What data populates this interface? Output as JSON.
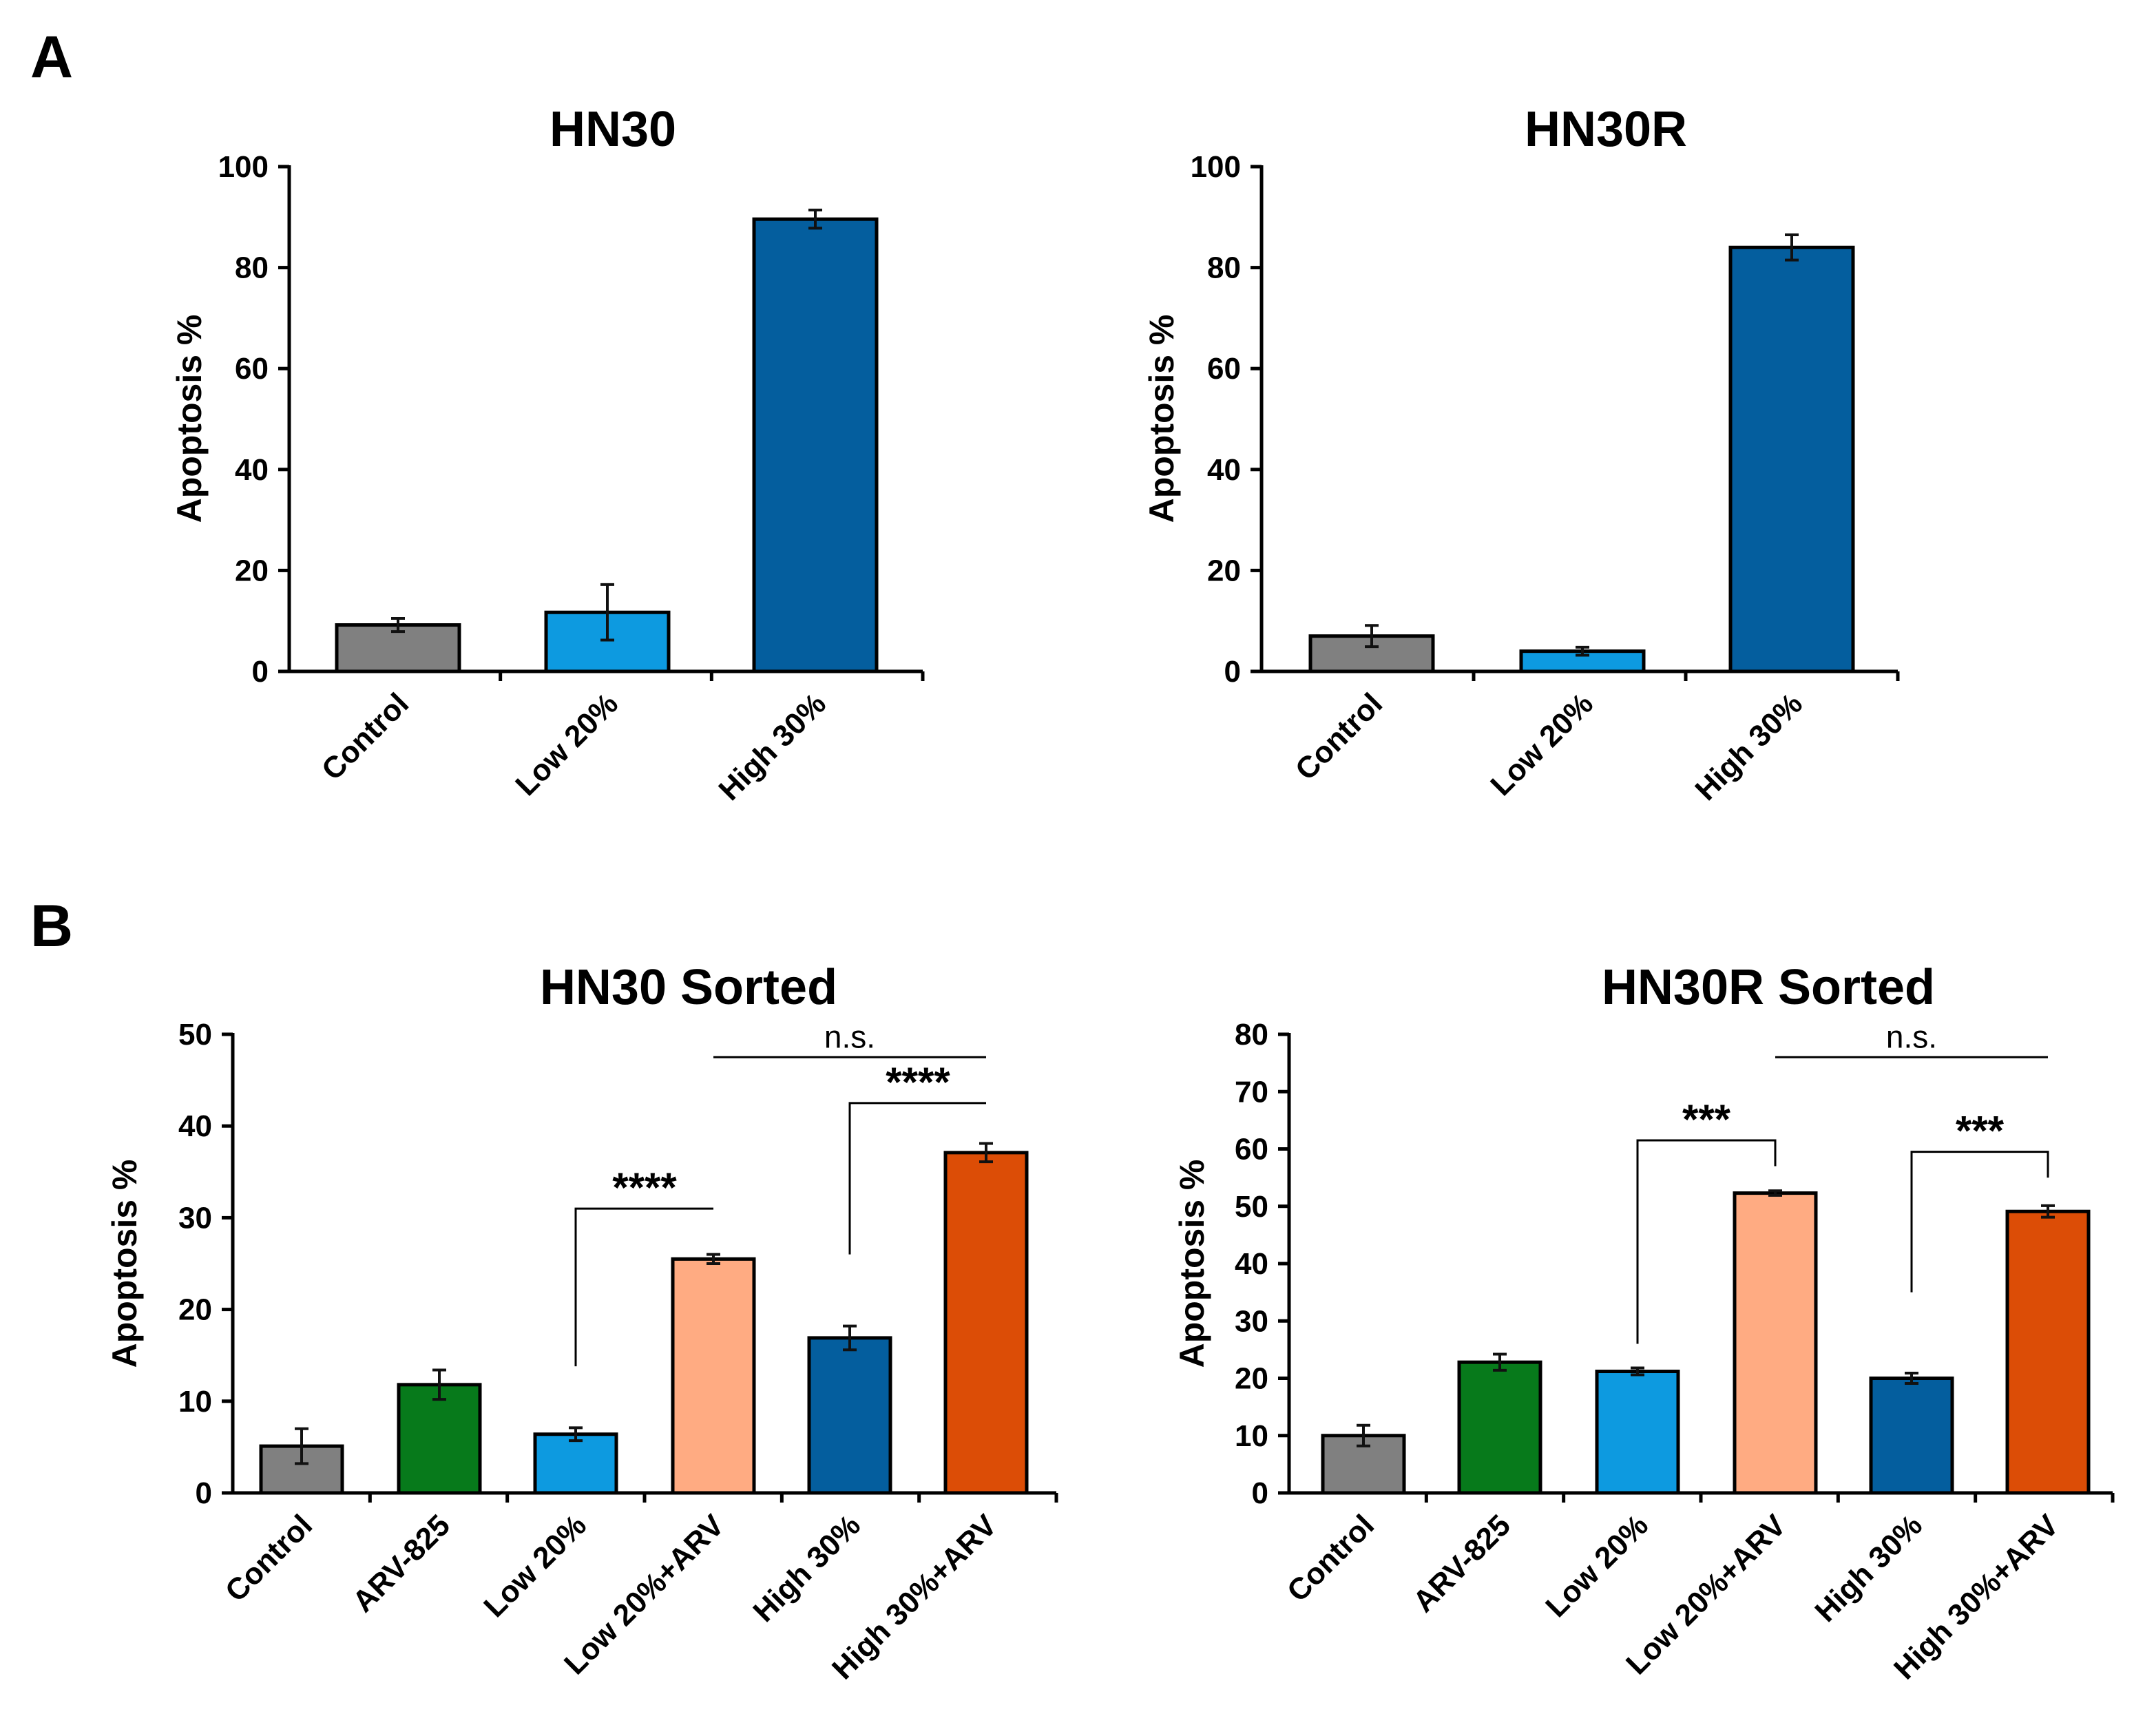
{
  "panels": [
    {
      "letter": "A"
    },
    {
      "letter": "B"
    }
  ],
  "colors": {
    "control": "#808080",
    "arv825": "#077a1b",
    "low": "#0d9ae0",
    "low_arv": "#ffab82",
    "high": "#045e9e",
    "high_arv": "#dc4d06",
    "axis": "#000000"
  },
  "chart_data": [
    {
      "type": "bar",
      "title": "HN30",
      "ylabel": "Apoptosis %",
      "xlabel": "",
      "ylim": [
        0,
        100
      ],
      "yticks": [
        0,
        20,
        40,
        60,
        80,
        100
      ],
      "categories": [
        "Control",
        "Low 20%",
        "High 30%"
      ],
      "series": [
        {
          "name": "Apoptosis %",
          "values": [
            9.2,
            11.7,
            89.6
          ],
          "errors": [
            1.3,
            5.5,
            1.8
          ]
        }
      ],
      "bar_colors": [
        "control",
        "low",
        "high"
      ],
      "significance": []
    },
    {
      "type": "bar",
      "title": "HN30R",
      "ylabel": "Apoptosis %",
      "xlabel": "",
      "ylim": [
        0,
        100
      ],
      "yticks": [
        0,
        20,
        40,
        60,
        80,
        100
      ],
      "categories": [
        "Control",
        "Low 20%",
        "High 30%"
      ],
      "series": [
        {
          "name": "Apoptosis %",
          "values": [
            7.0,
            4.0,
            84.0
          ],
          "errors": [
            2.1,
            0.8,
            2.5
          ]
        }
      ],
      "bar_colors": [
        "control",
        "low",
        "high"
      ],
      "significance": []
    },
    {
      "type": "bar",
      "title": "HN30 Sorted",
      "ylabel": "Apoptosis %",
      "xlabel": "",
      "ylim": [
        0,
        50
      ],
      "yticks": [
        0,
        10,
        20,
        30,
        40,
        50
      ],
      "categories": [
        "Control",
        "ARV-825",
        "Low 20%",
        "Low 20%+ARV",
        "High 30%",
        "High 30%+ARV"
      ],
      "series": [
        {
          "name": "Apoptosis %",
          "values": [
            5.1,
            11.8,
            6.4,
            25.5,
            16.9,
            37.1
          ],
          "errors": [
            1.9,
            1.6,
            0.7,
            0.5,
            1.3,
            1.0
          ]
        }
      ],
      "bar_colors": [
        "control",
        "arv825",
        "low",
        "low_arv",
        "high",
        "high_arv"
      ],
      "significance": [
        {
          "from": 2,
          "to": 3,
          "label": "****",
          "left_drop": 13.8,
          "right_drop": 31.0,
          "bracket_y": 31.0
        },
        {
          "from": 4,
          "to": 5,
          "label": "****",
          "left_drop": 26.0,
          "right_drop": 42.5,
          "bracket_y": 42.5
        },
        {
          "from": 3,
          "to": 5,
          "label": "n.s.",
          "left_drop": 47.5,
          "right_drop": 47.5,
          "bracket_y": 47.5
        }
      ]
    },
    {
      "type": "bar",
      "title": "HN30R Sorted",
      "ylabel": "Apoptosis %",
      "xlabel": "",
      "ylim": [
        0,
        80
      ],
      "yticks": [
        0,
        10,
        20,
        30,
        40,
        50,
        60,
        70,
        80
      ],
      "categories": [
        "Control",
        "ARV-825",
        "Low 20%",
        "Low 20%+ARV",
        "High 30%",
        "High 30%+ARV"
      ],
      "series": [
        {
          "name": "Apoptosis %",
          "values": [
            10.0,
            22.8,
            21.2,
            52.3,
            20.0,
            49.1
          ],
          "errors": [
            1.8,
            1.4,
            0.6,
            0.4,
            0.9,
            1.0
          ]
        }
      ],
      "bar_colors": [
        "control",
        "arv825",
        "low",
        "low_arv",
        "high",
        "high_arv"
      ],
      "significance": [
        {
          "from": 2,
          "to": 3,
          "label": "***",
          "left_drop": 26.0,
          "right_drop": 57.0,
          "bracket_y": 61.5
        },
        {
          "from": 4,
          "to": 5,
          "label": "***",
          "left_drop": 35.0,
          "right_drop": 55.0,
          "bracket_y": 59.5
        },
        {
          "from": 3,
          "to": 5,
          "label": "n.s.",
          "left_drop": 76.0,
          "right_drop": 76.0,
          "bracket_y": 76.0
        }
      ]
    }
  ]
}
